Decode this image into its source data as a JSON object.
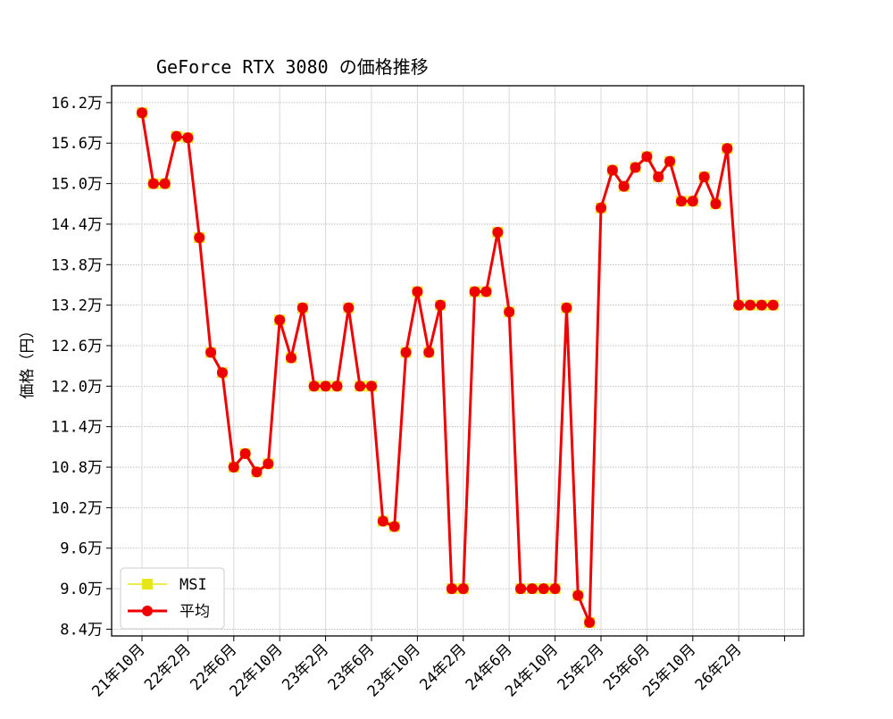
{
  "chart_data": {
    "type": "line",
    "title": "GeForce RTX 3080 の価格推移",
    "xlabel": "",
    "ylabel": "価格（円）",
    "ylim": [
      83000,
      164500
    ],
    "grid": true,
    "legend_position": "lower-left",
    "y_ticks": [
      84000,
      90000,
      96000,
      102000,
      108000,
      114000,
      120000,
      126000,
      132000,
      138000,
      144000,
      150000,
      156000,
      162000
    ],
    "y_tick_labels": [
      "8.4万",
      "9.0万",
      "9.6万",
      "10.2万",
      "10.8万",
      "11.4万",
      "12.0万",
      "12.6万",
      "13.2万",
      "13.8万",
      "14.4万",
      "15.0万",
      "15.6万",
      "16.2万"
    ],
    "x_ticks": [
      0,
      4,
      8,
      12,
      16,
      20,
      24,
      28,
      32,
      36,
      40,
      44,
      48,
      52,
      56
    ],
    "x_tick_labels": [
      "21年10月",
      "22年2月",
      "22年6月",
      "22年10月",
      "23年2月",
      "23年6月",
      "23年10月",
      "24年2月",
      "24年6月",
      "24年10月",
      "25年2月",
      "25年6月",
      "25年10月",
      "26年2月",
      ""
    ],
    "x": [
      0,
      1,
      2,
      3,
      4,
      5,
      6,
      7,
      8,
      9,
      10,
      11,
      12,
      13,
      14,
      15,
      16,
      17,
      18,
      19,
      20,
      21,
      22,
      23,
      24,
      25,
      26,
      27,
      28,
      29,
      30,
      31,
      32,
      33,
      34,
      35,
      36,
      37,
      38,
      39,
      40,
      41,
      42,
      43,
      44,
      45,
      46,
      47,
      48,
      49,
      50,
      51,
      52,
      53,
      54,
      55
    ],
    "series": [
      {
        "name": "MSI",
        "color": "#e6e619",
        "marker": "square",
        "values": [
          160500,
          150000,
          150000,
          157000,
          156800,
          142000,
          125000,
          122000,
          108000,
          110000,
          107300,
          108500,
          129800,
          124200,
          131600,
          120000,
          120000,
          120000,
          131600,
          120000,
          120000,
          100000,
          99200,
          125000,
          134000,
          125000,
          132000,
          90000,
          90000,
          134000,
          134000,
          142800,
          131000,
          90000,
          90000,
          90000,
          90000,
          131600,
          89000,
          85000,
          146400,
          152000,
          149600,
          152400,
          154000,
          151000,
          153300,
          147400,
          147400,
          151000,
          147000,
          155200,
          132000,
          132000,
          132000,
          132000
        ]
      },
      {
        "name": "平均",
        "color": "#ee0000",
        "marker": "circle",
        "values": [
          160500,
          150000,
          150000,
          157000,
          156800,
          142000,
          125000,
          122000,
          108000,
          110000,
          107300,
          108500,
          129800,
          124200,
          131600,
          120000,
          120000,
          120000,
          131600,
          120000,
          120000,
          100000,
          99200,
          125000,
          134000,
          125000,
          132000,
          90000,
          90000,
          134000,
          134000,
          142800,
          131000,
          90000,
          90000,
          90000,
          90000,
          131600,
          89000,
          85000,
          146400,
          152000,
          149600,
          152400,
          154000,
          151000,
          153300,
          147400,
          147400,
          151000,
          147000,
          155200,
          132000,
          132000,
          132000,
          132000
        ]
      }
    ]
  }
}
